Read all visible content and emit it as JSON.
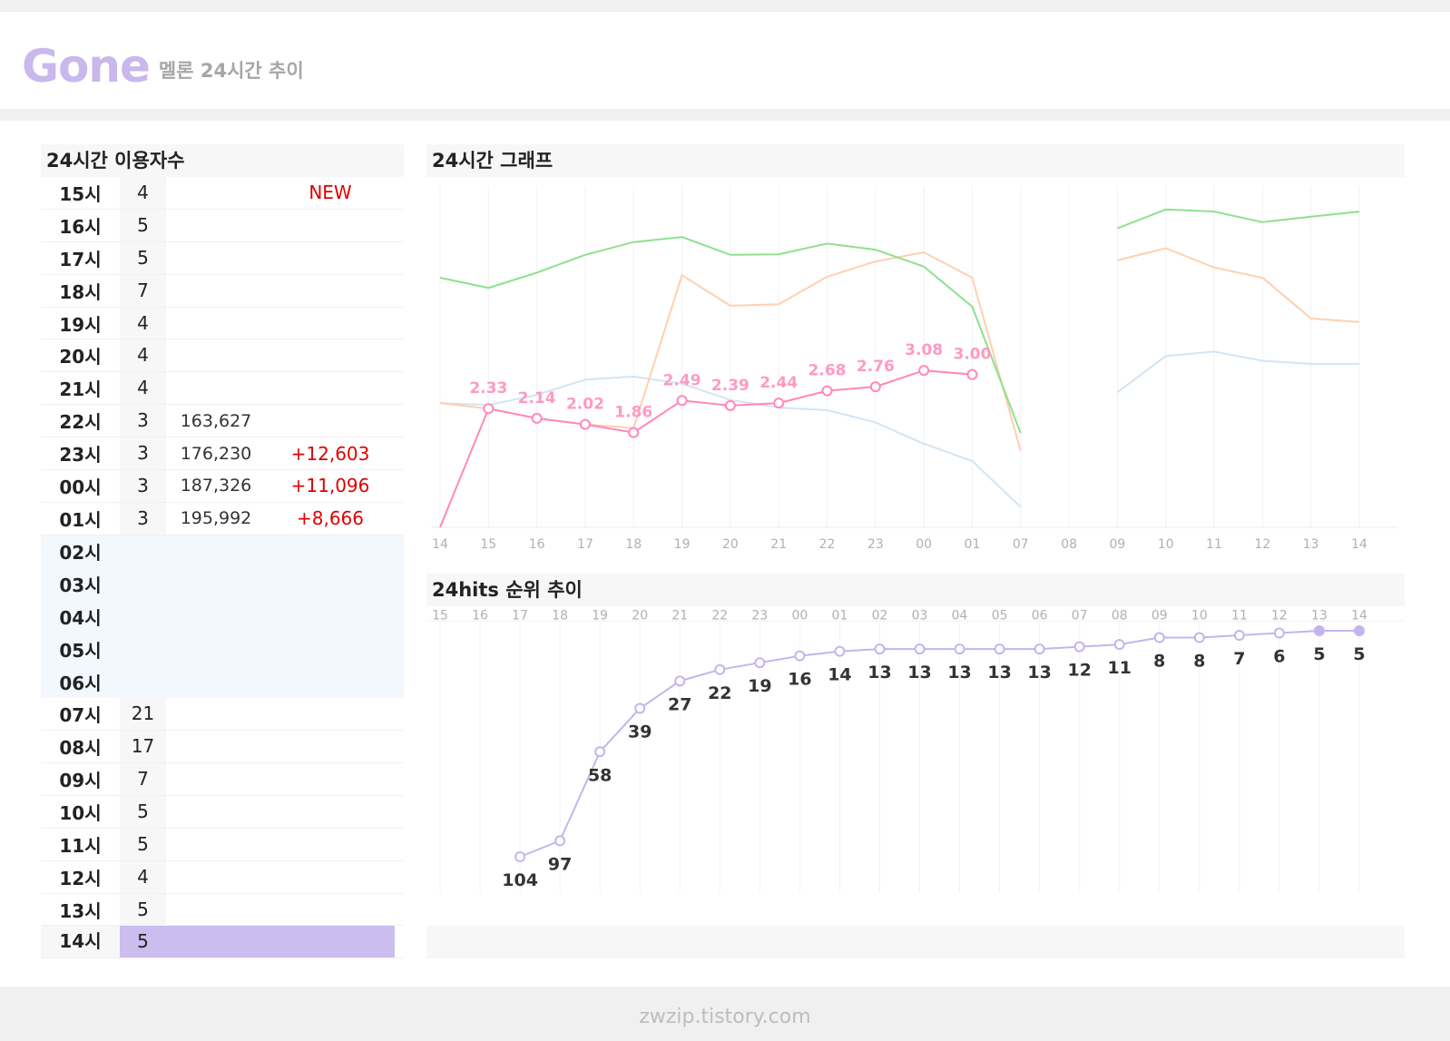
{
  "header": {
    "song": "Gone",
    "subtitle": "멜론 24시간 추이"
  },
  "footer": {
    "site": "zwzip.tistory.com"
  },
  "table": {
    "title": "24시간 이용자수",
    "rows": [
      {
        "hour": "15시",
        "rank": "4",
        "listeners": "",
        "delta": "NEW",
        "state": "normal"
      },
      {
        "hour": "16시",
        "rank": "5",
        "listeners": "",
        "delta": "",
        "state": "normal"
      },
      {
        "hour": "17시",
        "rank": "5",
        "listeners": "",
        "delta": "",
        "state": "normal"
      },
      {
        "hour": "18시",
        "rank": "7",
        "listeners": "",
        "delta": "",
        "state": "normal"
      },
      {
        "hour": "19시",
        "rank": "4",
        "listeners": "",
        "delta": "",
        "state": "normal"
      },
      {
        "hour": "20시",
        "rank": "4",
        "listeners": "",
        "delta": "",
        "state": "normal"
      },
      {
        "hour": "21시",
        "rank": "4",
        "listeners": "",
        "delta": "",
        "state": "normal"
      },
      {
        "hour": "22시",
        "rank": "3",
        "listeners": "163,627",
        "delta": "",
        "state": "normal"
      },
      {
        "hour": "23시",
        "rank": "3",
        "listeners": "176,230",
        "delta": "+12,603",
        "state": "normal"
      },
      {
        "hour": "00시",
        "rank": "3",
        "listeners": "187,326",
        "delta": "+11,096",
        "state": "normal"
      },
      {
        "hour": "01시",
        "rank": "3",
        "listeners": "195,992",
        "delta": "+8,666",
        "state": "normal"
      },
      {
        "hour": "02시",
        "rank": "",
        "listeners": "",
        "delta": "",
        "state": "empty"
      },
      {
        "hour": "03시",
        "rank": "",
        "listeners": "",
        "delta": "",
        "state": "empty"
      },
      {
        "hour": "04시",
        "rank": "",
        "listeners": "",
        "delta": "",
        "state": "empty"
      },
      {
        "hour": "05시",
        "rank": "",
        "listeners": "",
        "delta": "",
        "state": "empty"
      },
      {
        "hour": "06시",
        "rank": "",
        "listeners": "",
        "delta": "",
        "state": "empty"
      },
      {
        "hour": "07시",
        "rank": "21",
        "listeners": "",
        "delta": "",
        "state": "normal"
      },
      {
        "hour": "08시",
        "rank": "17",
        "listeners": "",
        "delta": "",
        "state": "normal"
      },
      {
        "hour": "09시",
        "rank": "7",
        "listeners": "",
        "delta": "",
        "state": "normal"
      },
      {
        "hour": "10시",
        "rank": "5",
        "listeners": "",
        "delta": "",
        "state": "normal"
      },
      {
        "hour": "11시",
        "rank": "5",
        "listeners": "",
        "delta": "",
        "state": "normal"
      },
      {
        "hour": "12시",
        "rank": "4",
        "listeners": "",
        "delta": "",
        "state": "normal"
      },
      {
        "hour": "13시",
        "rank": "5",
        "listeners": "",
        "delta": "",
        "state": "normal"
      },
      {
        "hour": "14시",
        "rank": "5",
        "listeners": "",
        "delta": "",
        "state": "highlight"
      }
    ]
  },
  "chart_data": [
    {
      "type": "line",
      "title": "24시간 그래프",
      "categories": [
        "14",
        "15",
        "16",
        "17",
        "18",
        "19",
        "20",
        "21",
        "22",
        "23",
        "00",
        "01",
        "07",
        "08",
        "09",
        "10",
        "11",
        "12",
        "13",
        "14"
      ],
      "colors": {
        "pink": "#ff88bb",
        "green": "#8ee08e",
        "peach": "#ffcfb0",
        "lightblue": "#d4e4f4"
      },
      "series": [
        {
          "values": [
            null,
            2.33,
            2.14,
            2.02,
            1.86,
            2.49,
            2.39,
            2.44,
            2.68,
            2.76,
            3.08,
            3.0,
            null,
            null,
            null,
            null,
            null,
            null,
            null,
            null
          ],
          "labeled": true,
          "first_point_drop": true
        },
        {
          "values": [
            4.9,
            4.7,
            5.0,
            5.35,
            5.6,
            5.7,
            5.35,
            5.36,
            5.57,
            5.45,
            5.12,
            4.33,
            1.85,
            null,
            5.87,
            6.24,
            6.2,
            5.99,
            6.1,
            6.2
          ]
        },
        {
          "values": [
            2.44,
            2.33,
            2.14,
            2.02,
            1.95,
            4.95,
            4.35,
            4.38,
            4.92,
            5.22,
            5.4,
            4.9,
            1.5,
            null,
            5.24,
            5.48,
            5.1,
            4.9,
            4.1,
            4.03
          ]
        },
        {
          "values": [
            2.44,
            2.4,
            2.6,
            2.9,
            2.96,
            2.82,
            2.5,
            2.35,
            2.3,
            2.06,
            1.64,
            1.3,
            0.4,
            null,
            2.65,
            3.36,
            3.45,
            3.27,
            3.21,
            3.21
          ]
        }
      ],
      "grid": true,
      "legend": "none"
    },
    {
      "type": "line",
      "title": "24hits 순위 추이",
      "categories": [
        "15",
        "16",
        "17",
        "18",
        "19",
        "20",
        "21",
        "22",
        "23",
        "00",
        "01",
        "02",
        "03",
        "04",
        "05",
        "06",
        "07",
        "08",
        "09",
        "10",
        "11",
        "12",
        "13",
        "14"
      ],
      "values": [
        null,
        null,
        104,
        97,
        58,
        39,
        27,
        22,
        19,
        16,
        14,
        13,
        13,
        13,
        13,
        13,
        12,
        11,
        8,
        8,
        7,
        6,
        5,
        5
      ],
      "y_inverted": true,
      "color": "#c4b4ee",
      "grid": true,
      "legend": "none"
    }
  ]
}
